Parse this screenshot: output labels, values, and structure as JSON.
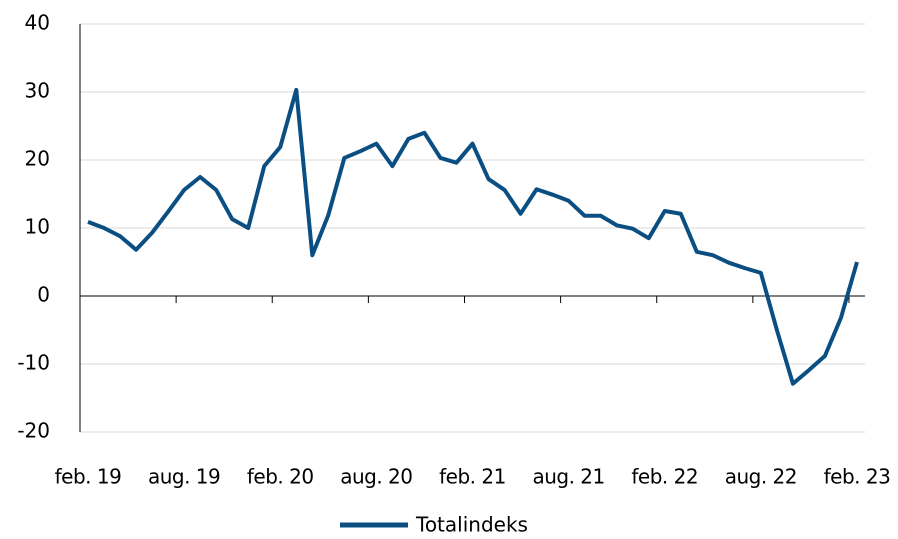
{
  "chart_data": {
    "type": "line",
    "categories": [
      "feb. 19",
      null,
      null,
      null,
      null,
      null,
      "aug. 19",
      null,
      null,
      null,
      null,
      null,
      "feb. 20",
      null,
      null,
      null,
      null,
      null,
      "aug. 20",
      null,
      null,
      null,
      null,
      null,
      "feb. 21",
      null,
      null,
      null,
      null,
      null,
      "aug. 21",
      null,
      null,
      null,
      null,
      null,
      "feb. 22",
      null,
      null,
      null,
      null,
      null,
      "aug. 22",
      null,
      null,
      null,
      null,
      null,
      "feb. 23"
    ],
    "series": [
      {
        "name": "Totalindeks",
        "color": "#0b4f82",
        "values": [
          10.9,
          10,
          8.8,
          6.8,
          9.3,
          12.4,
          15.6,
          17.5,
          15.6,
          11.3,
          10,
          19.1,
          21.9,
          30.3,
          6,
          11.9,
          20.3,
          21.3,
          22.4,
          19.1,
          23.1,
          24,
          20.3,
          19.6,
          22.4,
          17.2,
          15.6,
          12.1,
          15.7,
          14.9,
          14,
          11.8,
          11.8,
          10.4,
          9.9,
          8.5,
          12.5,
          12.1,
          6.5,
          6,
          4.9,
          4.1,
          3.4,
          -5,
          -12.9,
          -10.9,
          -8.8,
          -3.2,
          5
        ]
      }
    ],
    "ylim": [
      -20,
      40
    ],
    "yticks": [
      -20,
      -10,
      0,
      10,
      20,
      30,
      40
    ],
    "grid": true,
    "legend": "bottom"
  }
}
